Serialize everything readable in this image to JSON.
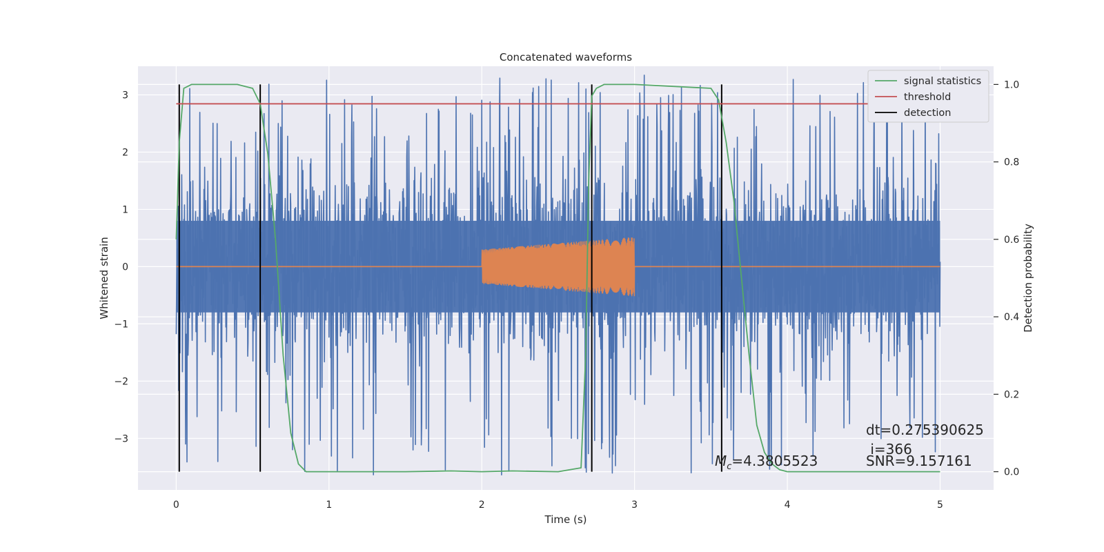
{
  "chart_data": {
    "type": "line",
    "title": "Concatenated waveforms",
    "xlabel": "Time (s)",
    "ylabel": "Whitened strain",
    "ylabel_right": "Detection probability",
    "xlim": [
      -0.25,
      5.35
    ],
    "ylim": [
      -3.9,
      3.5
    ],
    "ylim_right": [
      -0.047,
      1.047
    ],
    "x_ticks": [
      0,
      1,
      2,
      3,
      4,
      5
    ],
    "y_ticks": [
      -3,
      -2,
      -1,
      0,
      1,
      2,
      3
    ],
    "y2_ticks": [
      0.0,
      0.2,
      0.4,
      0.6,
      0.8,
      1.0
    ],
    "grid": true,
    "legend": {
      "placement": "upper right",
      "entries": [
        {
          "label": "signal statistics",
          "color": "#55a868"
        },
        {
          "label": "threshold",
          "color": "#c44e52"
        },
        {
          "label": "detection",
          "color": "#000000"
        }
      ]
    },
    "series": [
      {
        "role": "noisy strain",
        "color": "#4c72b0",
        "x_range": [
          0,
          5
        ],
        "core_amplitude": 0.8,
        "max": 3.35,
        "min": -3.65
      },
      {
        "role": "injected chirp",
        "color": "#dd8452",
        "baseline_x_range": [
          0,
          5
        ],
        "chirp_x_range": [
          2,
          3
        ],
        "start_amplitude": 0.3,
        "end_amplitude": 0.52
      },
      {
        "name": "signal statistics",
        "axis": "right",
        "color": "#55a868",
        "x": [
          0.0,
          0.02,
          0.05,
          0.1,
          0.2,
          0.4,
          0.5,
          0.55,
          0.6,
          0.65,
          0.7,
          0.75,
          0.8,
          0.85,
          1.0,
          1.5,
          1.8,
          2.0,
          2.2,
          2.5,
          2.65,
          2.68,
          2.7,
          2.72,
          2.75,
          2.8,
          3.0,
          3.5,
          3.55,
          3.6,
          3.65,
          3.7,
          3.75,
          3.8,
          3.85,
          3.9,
          3.95,
          4.0,
          5.0
        ],
        "y": [
          0.6,
          0.85,
          0.99,
          1.0,
          1.0,
          1.0,
          0.99,
          0.95,
          0.82,
          0.6,
          0.3,
          0.1,
          0.02,
          0.0,
          0.0,
          0.0,
          0.002,
          0.0,
          0.002,
          0.0,
          0.01,
          0.3,
          0.75,
          0.97,
          0.99,
          1.0,
          1.0,
          0.99,
          0.96,
          0.85,
          0.7,
          0.5,
          0.3,
          0.12,
          0.05,
          0.02,
          0.005,
          0.0,
          0.0
        ]
      },
      {
        "name": "threshold",
        "axis": "right",
        "color": "#c44e52",
        "x": [
          0,
          5
        ],
        "y": [
          0.95,
          0.95
        ]
      },
      {
        "name": "detection",
        "type": "vlines",
        "color": "#000000",
        "x": [
          0.02,
          0.55,
          2.72,
          3.57
        ]
      }
    ],
    "annotations": [
      {
        "text": "dt=0.275390625"
      },
      {
        "text": " i=366"
      },
      {
        "text": "SNR=9.157161"
      },
      {
        "symbol": "M",
        "subscript": "c",
        "text": "=4.3805523"
      }
    ]
  }
}
